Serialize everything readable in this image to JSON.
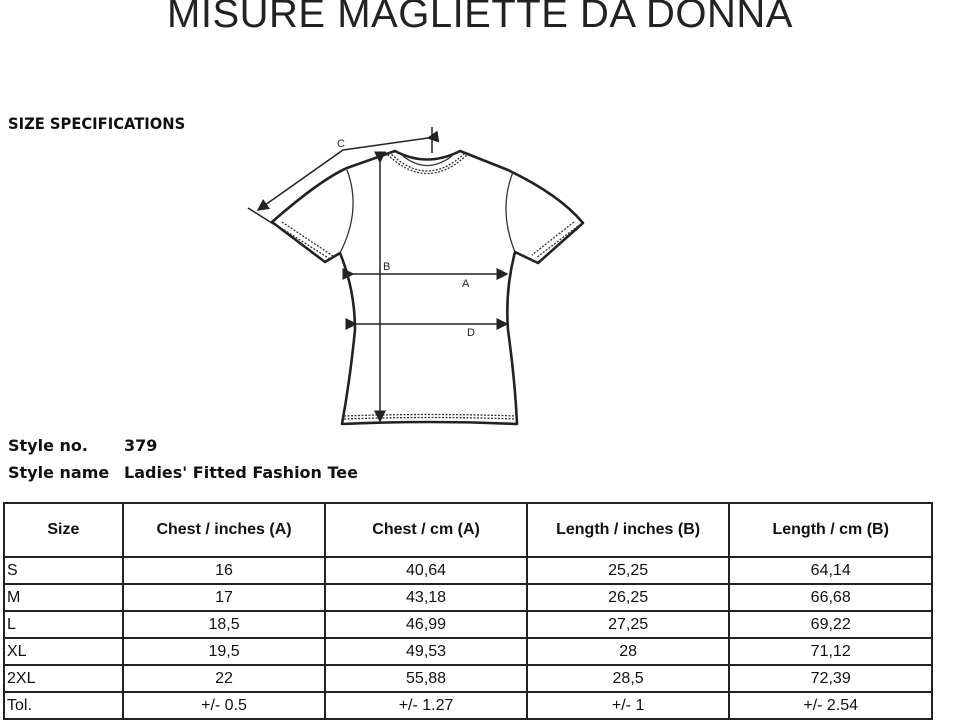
{
  "title": "MISURE MAGLIETTE DA DONNA",
  "section_heading": "SIZE SPECIFICATIONS",
  "style_no_label": "Style no.",
  "style_no": "379",
  "style_name_label": "Style name",
  "style_name": "Ladies' Fitted Fashion Tee",
  "diagram_labels": {
    "a": "A",
    "b": "B",
    "c": "C",
    "d": "D"
  },
  "table": {
    "headers": [
      "Size",
      "Chest / inches (A)",
      "Chest / cm (A)",
      "Length / inches (B)",
      "Length / cm (B)"
    ],
    "rows": [
      [
        "S",
        "16",
        "40,64",
        "25,25",
        "64,14"
      ],
      [
        "M",
        "17",
        "43,18",
        "26,25",
        "66,68"
      ],
      [
        "L",
        "18,5",
        "46,99",
        "27,25",
        "69,22"
      ],
      [
        "XL",
        "19,5",
        "49,53",
        "28",
        "71,12"
      ],
      [
        "2XL",
        "22",
        "55,88",
        "28,5",
        "72,39"
      ],
      [
        "Tol.",
        "+/- 0.5",
        "+/- 1.27",
        "+/- 1",
        "+/- 2.54"
      ]
    ]
  }
}
